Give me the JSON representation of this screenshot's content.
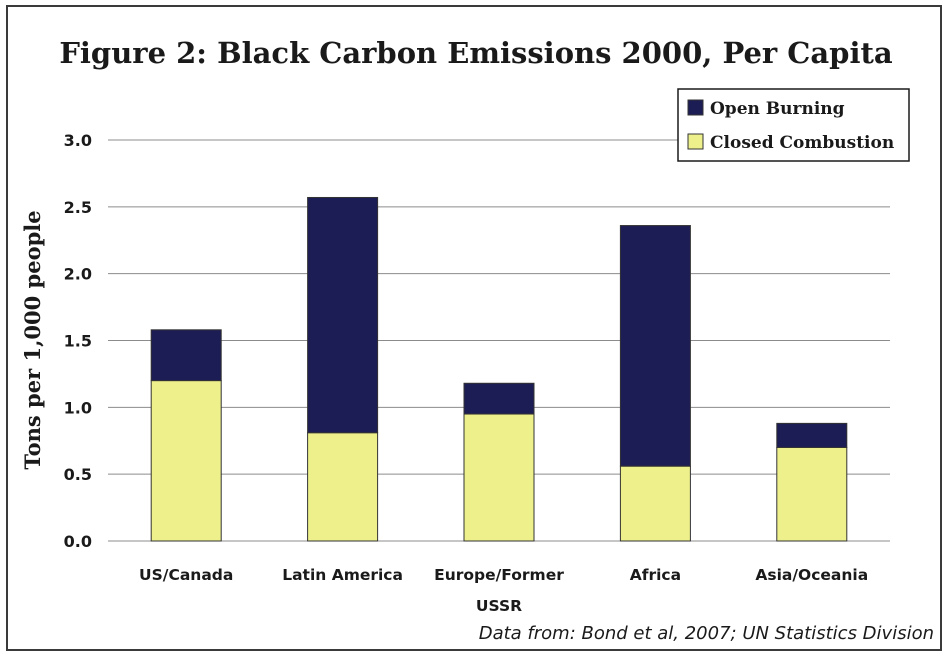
{
  "chart_data": {
    "type": "bar",
    "stacked": true,
    "title": "Figure 2:  Black Carbon Emissions 2000, Per Capita",
    "ylabel": "Tons per 1,000 people",
    "xlabel": "",
    "ylim": [
      0,
      3.0
    ],
    "yticks": [
      "0.0",
      "0.5",
      "1.0",
      "1.5",
      "2.0",
      "2.5",
      "3.0"
    ],
    "grid": true,
    "legend_position": "top-right",
    "categories": [
      [
        "US/Canada"
      ],
      [
        "Latin America"
      ],
      [
        "Europe/Former",
        "USSR"
      ],
      [
        "Africa"
      ],
      [
        "Asia/Oceania"
      ]
    ],
    "series": [
      {
        "name": "Closed Combustion",
        "color": "#eef08c",
        "values": [
          1.2,
          0.81,
          0.95,
          0.56,
          0.7
        ]
      },
      {
        "name": "Open Burning",
        "color": "#1d1d55",
        "values": [
          0.38,
          1.76,
          0.23,
          1.8,
          0.18
        ]
      }
    ],
    "legend_order": [
      1,
      0
    ],
    "annotation": "Data from: Bond et al, 2007; UN Statistics Division"
  }
}
